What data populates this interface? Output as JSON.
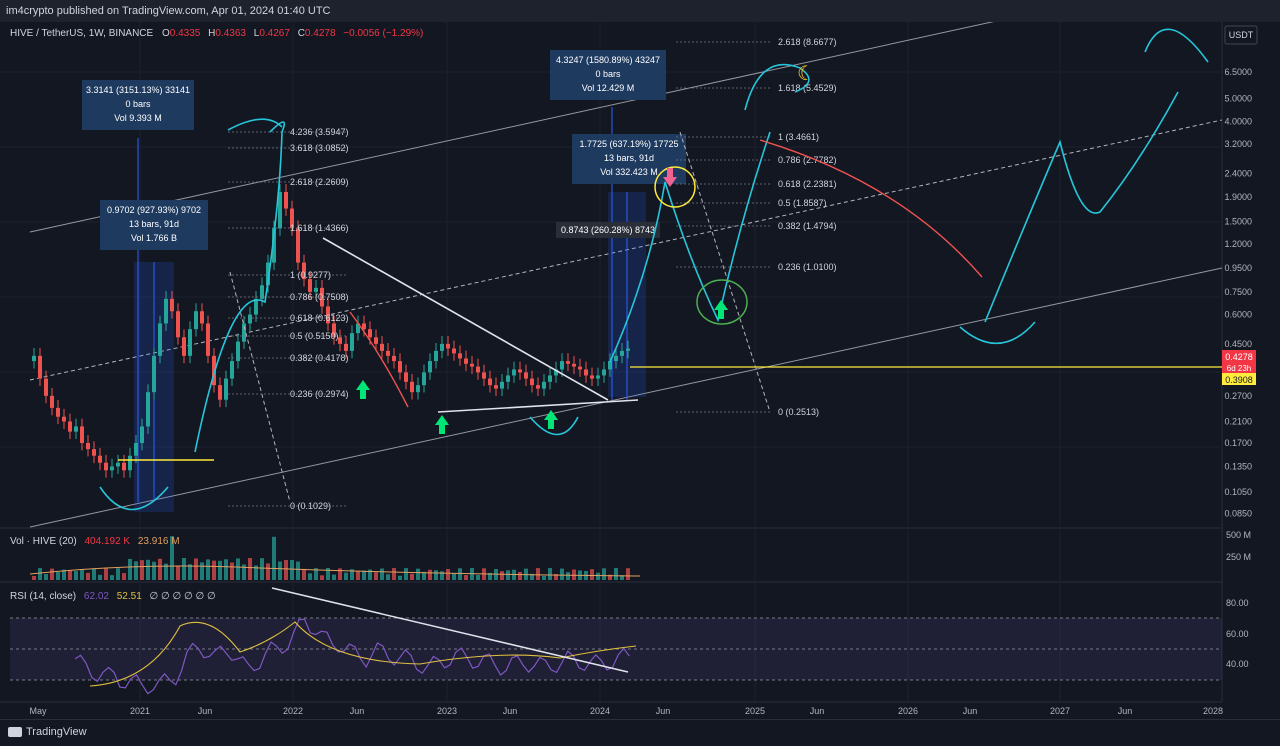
{
  "header": {
    "publisher": "im4crypto published on TradingView.com, Apr 01, 2024 01:40 UTC"
  },
  "legend": {
    "symbol": "HIVE / TetherUS, 1W, BINANCE",
    "open_label": "O",
    "open": "0.4335",
    "high_label": "H",
    "high": "0.4363",
    "low_label": "L",
    "low": "0.4267",
    "close_label": "C",
    "close": "0.4278",
    "change": "−0.0056 (−1.29%)"
  },
  "currency_button": "USDT",
  "volume_legend": {
    "label": "Vol · HIVE (20)",
    "value1": "404.192 K",
    "value2": "23.916 M"
  },
  "rsi_legend": {
    "label": "RSI (14, close)",
    "value1": "62.02",
    "value2": "52.51",
    "extras": "∅ ∅ ∅ ∅ ∅ ∅"
  },
  "chart_data": {
    "type": "candlestick",
    "price_axis": {
      "scale": "log",
      "ticks": [
        "6.5000",
        "5.0000",
        "4.0000",
        "3.2000",
        "2.4000",
        "1.9000",
        "1.5000",
        "1.2000",
        "0.9500",
        "0.7500",
        "0.6000",
        "0.4500",
        "0.3700",
        "0.2700",
        "0.2100",
        "0.1700",
        "0.1350",
        "0.1050",
        "0.0850"
      ]
    },
    "price_badges": {
      "last": "0.4278",
      "countdown": "6d 23h",
      "level": "0.3908"
    },
    "volume_axis": {
      "ticks": [
        "500 M",
        "250 M"
      ]
    },
    "rsi_axis": {
      "ticks": [
        "80.00",
        "60.00",
        "40.00"
      ]
    },
    "time_axis": {
      "ticks": [
        "May",
        "2021",
        "Jun",
        "2022",
        "Jun",
        "2023",
        "Jun",
        "2024",
        "Jun",
        "2025",
        "Jun",
        "2026",
        "Jun",
        "2027",
        "Jun",
        "2028"
      ]
    },
    "fib_right": {
      "levels": [
        "2.618 (8.6677)",
        "1.618 (5.4529)",
        "1 (3.4661)",
        "0.786 (2.7782)",
        "0.618 (2.2381)",
        "0.5 (1.8587)",
        "0.382 (1.4794)",
        "0.236 (1.0100)",
        "0 (0.2513)"
      ]
    },
    "fib_left": {
      "levels": [
        "4.236 (3.5947)",
        "3.618 (3.0852)",
        "2.618 (2.2609)",
        "1.618 (1.4366)",
        "1 (0.9277)",
        "0.786 (0.7508)",
        "0.618 (0.6123)",
        "0.5 (0.5150)",
        "0.382 (0.4178)",
        "0.236 (0.2974)",
        "0 (0.1029)"
      ]
    },
    "measure_boxes": [
      {
        "line1": "3.3141 (3151.13%) 33141",
        "line2": "0 bars",
        "line3": "Vol 9.393 M"
      },
      {
        "line1": "0.9702 (927.93%) 9702",
        "line2": "13 bars, 91d",
        "line3": "Vol 1.766 B"
      },
      {
        "line1": "4.3247 (1580.89%) 43247",
        "line2": "0 bars",
        "line3": "Vol 12.429 M"
      },
      {
        "line1": "1.7725 (637.19%) 17725",
        "line2": "13 bars, 91d",
        "line3": "Vol 332.423 M"
      },
      {
        "line1": "0.8743 (260.28%) 8743"
      }
    ],
    "closes": [
      0.4,
      0.32,
      0.27,
      0.24,
      0.22,
      0.21,
      0.19,
      0.2,
      0.17,
      0.16,
      0.15,
      0.14,
      0.13,
      0.135,
      0.14,
      0.13,
      0.15,
      0.17,
      0.2,
      0.28,
      0.4,
      0.55,
      0.7,
      0.62,
      0.48,
      0.4,
      0.52,
      0.62,
      0.55,
      0.4,
      0.3,
      0.26,
      0.32,
      0.38,
      0.46,
      0.55,
      0.6,
      0.7,
      0.8,
      1.0,
      1.4,
      2.0,
      1.7,
      1.4,
      1.0,
      0.85,
      0.75,
      0.78,
      0.65,
      0.55,
      0.48,
      0.45,
      0.42,
      0.5,
      0.55,
      0.52,
      0.48,
      0.45,
      0.42,
      0.4,
      0.38,
      0.34,
      0.31,
      0.28,
      0.3,
      0.34,
      0.38,
      0.42,
      0.45,
      0.43,
      0.41,
      0.39,
      0.37,
      0.36,
      0.34,
      0.32,
      0.3,
      0.29,
      0.31,
      0.33,
      0.35,
      0.34,
      0.32,
      0.3,
      0.29,
      0.31,
      0.33,
      0.35,
      0.38,
      0.37,
      0.36,
      0.35,
      0.33,
      0.32,
      0.33,
      0.35,
      0.38,
      0.4,
      0.42,
      0.43
    ]
  }
}
